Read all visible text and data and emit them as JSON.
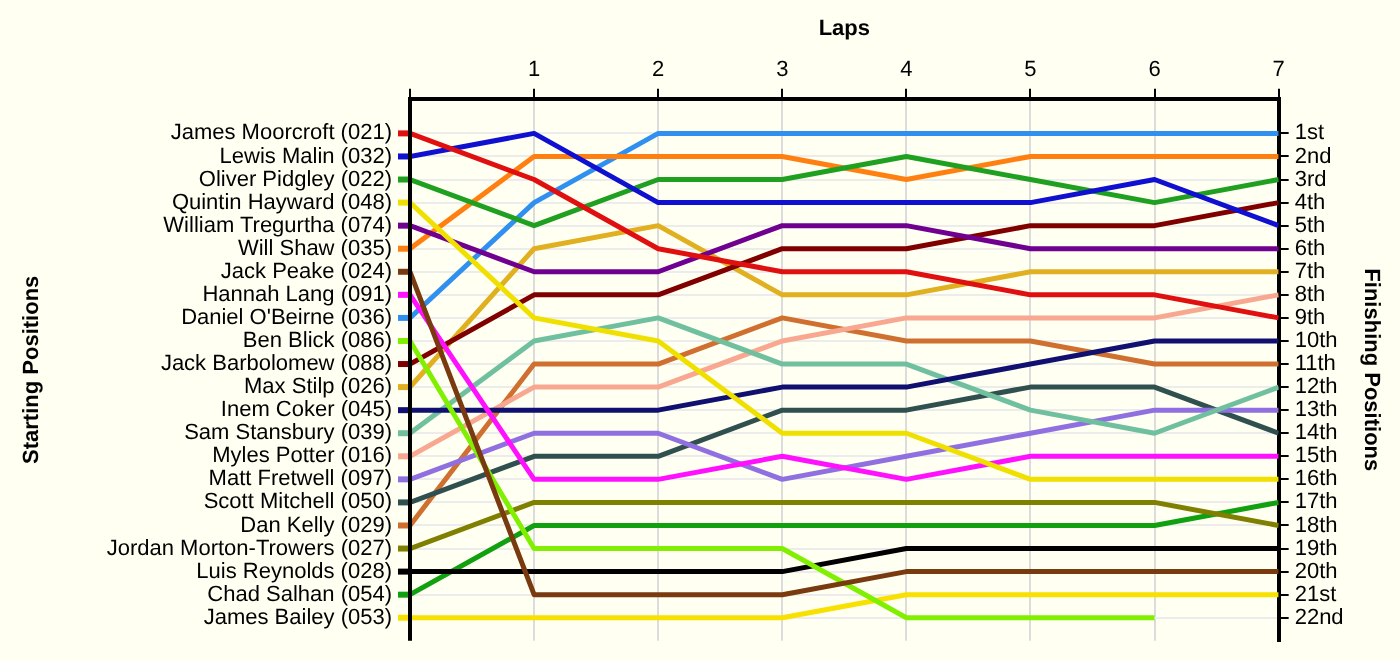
{
  "chart_data": {
    "type": "line",
    "xlabel": "Laps",
    "legend_title": "Starting Positions",
    "ylabel": "Finishing Positions",
    "x": [
      0,
      1,
      2,
      3,
      4,
      5,
      6,
      7
    ],
    "xlim": [
      0,
      7
    ],
    "xticks": [
      {
        "value": 0,
        "label": null
      },
      1,
      2,
      3,
      4,
      5,
      6,
      7
    ],
    "ylim": [
      23,
      -0.5
    ],
    "yticks": [
      {
        "value": 1,
        "label": "1st"
      },
      {
        "value": 2,
        "label": "2nd"
      },
      {
        "value": 3,
        "label": "3rd"
      },
      {
        "value": 4,
        "label": "4th"
      },
      {
        "value": 5,
        "label": "5th"
      },
      {
        "value": 6,
        "label": "6th"
      },
      {
        "value": 7,
        "label": "7th"
      },
      {
        "value": 8,
        "label": "8th"
      },
      {
        "value": 9,
        "label": "9th"
      },
      {
        "value": 10,
        "label": "10th"
      },
      {
        "value": 11,
        "label": "11th"
      },
      {
        "value": 12,
        "label": "12th"
      },
      {
        "value": 13,
        "label": "13th"
      },
      {
        "value": 14,
        "label": "14th"
      },
      {
        "value": 15,
        "label": "15th"
      },
      {
        "value": 16,
        "label": "16th"
      },
      {
        "value": 17,
        "label": "17th"
      },
      {
        "value": 18,
        "label": "18th"
      },
      {
        "value": 19,
        "label": "19th"
      },
      {
        "value": 20,
        "label": "20th"
      },
      {
        "value": 21,
        "label": "21st"
      },
      {
        "value": 22,
        "label": "22nd"
      }
    ],
    "grid": true,
    "legend": "left",
    "marker": "none",
    "line_style": "solid",
    "series": [
      {
        "name": "James Moorcroft (021)",
        "color": "#e01010",
        "values": [
          1,
          3,
          6,
          7,
          7,
          8,
          8,
          9
        ]
      },
      {
        "name": "Lewis Malin (032)",
        "color": "#1010d0",
        "values": [
          2,
          1,
          4,
          4,
          4,
          4,
          3,
          5
        ]
      },
      {
        "name": "Oliver Pidgley (022)",
        "color": "#20a020",
        "values": [
          3,
          5,
          3,
          3,
          2,
          3,
          4,
          3
        ]
      },
      {
        "name": "Quintin Hayward (048)",
        "color": "#f0e000",
        "values": [
          4,
          9,
          10,
          14,
          14,
          16,
          16,
          16
        ]
      },
      {
        "name": "William Tregurtha (074)",
        "color": "#700090",
        "values": [
          5,
          7,
          7,
          5,
          5,
          6,
          6,
          6
        ]
      },
      {
        "name": "Will Shaw (035)",
        "color": "#ff8010",
        "values": [
          6,
          2,
          2,
          2,
          3,
          2,
          2,
          2
        ]
      },
      {
        "name": "Jack Peake (024)",
        "color": "#7a3a10",
        "values": [
          7,
          21,
          21,
          21,
          20,
          20,
          20,
          20
        ]
      },
      {
        "name": "Hannah Lang (091)",
        "color": "#ff10ff",
        "values": [
          8,
          16,
          16,
          15,
          16,
          15,
          15,
          15
        ]
      },
      {
        "name": "Daniel O'Beirne (036)",
        "color": "#3090f0",
        "values": [
          9,
          4,
          1,
          1,
          1,
          1,
          1,
          1
        ]
      },
      {
        "name": "Ben Blick (086)",
        "color": "#80f000",
        "values": [
          10,
          19,
          19,
          19,
          22,
          22,
          22,
          null
        ]
      },
      {
        "name": "Jack Barbolomew (088)",
        "color": "#800000",
        "values": [
          11,
          8,
          8,
          6,
          6,
          5,
          5,
          4
        ]
      },
      {
        "name": "Max Stilp (026)",
        "color": "#e0b020",
        "values": [
          12,
          6,
          5,
          8,
          8,
          7,
          7,
          7
        ]
      },
      {
        "name": "Inem Coker (045)",
        "color": "#101070",
        "values": [
          13,
          13,
          13,
          12,
          12,
          11,
          10,
          10
        ]
      },
      {
        "name": "Sam Stansbury (039)",
        "color": "#70c0a0",
        "values": [
          14,
          10,
          9,
          11,
          11,
          13,
          14,
          12
        ]
      },
      {
        "name": "Myles Potter (016)",
        "color": "#f8a890",
        "values": [
          15,
          12,
          12,
          10,
          9,
          9,
          9,
          8
        ]
      },
      {
        "name": "Matt Fretwell (097)",
        "color": "#9070e0",
        "values": [
          16,
          14,
          14,
          16,
          15,
          14,
          13,
          13
        ]
      },
      {
        "name": "Scott Mitchell (050)",
        "color": "#305050",
        "values": [
          17,
          15,
          15,
          13,
          13,
          12,
          12,
          14
        ]
      },
      {
        "name": "Dan Kelly (029)",
        "color": "#d07030",
        "values": [
          18,
          11,
          11,
          9,
          10,
          10,
          11,
          11
        ]
      },
      {
        "name": "Jordan Morton-Trowers (027)",
        "color": "#808000",
        "values": [
          19,
          17,
          17,
          17,
          17,
          17,
          17,
          18
        ]
      },
      {
        "name": "Luis Reynolds (028)",
        "color": "#000000",
        "values": [
          20,
          20,
          20,
          20,
          19,
          19,
          19,
          19
        ]
      },
      {
        "name": "Chad Salhan (054)",
        "color": "#10a010",
        "values": [
          21,
          18,
          18,
          18,
          18,
          18,
          18,
          17
        ]
      },
      {
        "name": "James Bailey (053)",
        "color": "#f8e000",
        "values": [
          22,
          22,
          22,
          22,
          21,
          21,
          21,
          21
        ]
      }
    ]
  }
}
